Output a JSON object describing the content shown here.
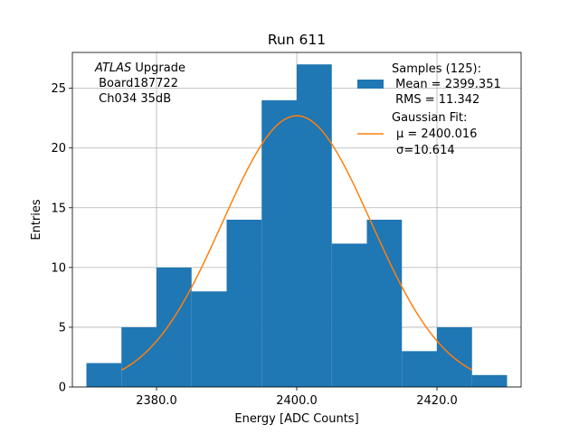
{
  "chart_data": {
    "type": "bar",
    "title": "Run 611",
    "xlabel": "Energy [ADC Counts]",
    "ylabel": "Entries",
    "xlim": [
      2368,
      2432
    ],
    "ylim": [
      0,
      28
    ],
    "xticks": [
      2380,
      2400,
      2420
    ],
    "xtick_labels": [
      "2380.0",
      "2400.0",
      "2420.0"
    ],
    "yticks": [
      0,
      5,
      10,
      15,
      20,
      25
    ],
    "ytick_labels": [
      "0",
      "5",
      "10",
      "15",
      "20",
      "25"
    ],
    "grid": true,
    "bin_edges": [
      2370,
      2375,
      2380,
      2385,
      2390,
      2395,
      2400,
      2405,
      2410,
      2415,
      2420,
      2425,
      2430
    ],
    "values": [
      2,
      5,
      10,
      8,
      14,
      24,
      27,
      12,
      14,
      3,
      5,
      1
    ],
    "bar_color": "#1f77b4",
    "fit": {
      "type": "gaussian",
      "color": "#ff7f0e",
      "mu": 2400.016,
      "sigma": 10.614,
      "amplitude": 22.7,
      "x_range": [
        2375,
        2425
      ]
    },
    "annotation": {
      "line1_italic": "ATLAS",
      "line1_rest": " Upgrade",
      "line2": " Board187722",
      "line3": " Ch034 35dB"
    },
    "legend": {
      "position": "top-right",
      "hist_title": "Samples (125):",
      "hist_mean": " Mean = 2399.351",
      "hist_rms": " RMS = 11.342",
      "fit_title": "Gaussian Fit:",
      "fit_mu": "μ = 2400.016",
      "fit_sigma": "σ=10.614",
      "mu_symbol": "μ",
      "mu_value": " = 2400.016",
      "sigma_symbol": "σ",
      "sigma_value": "=10.614"
    }
  }
}
